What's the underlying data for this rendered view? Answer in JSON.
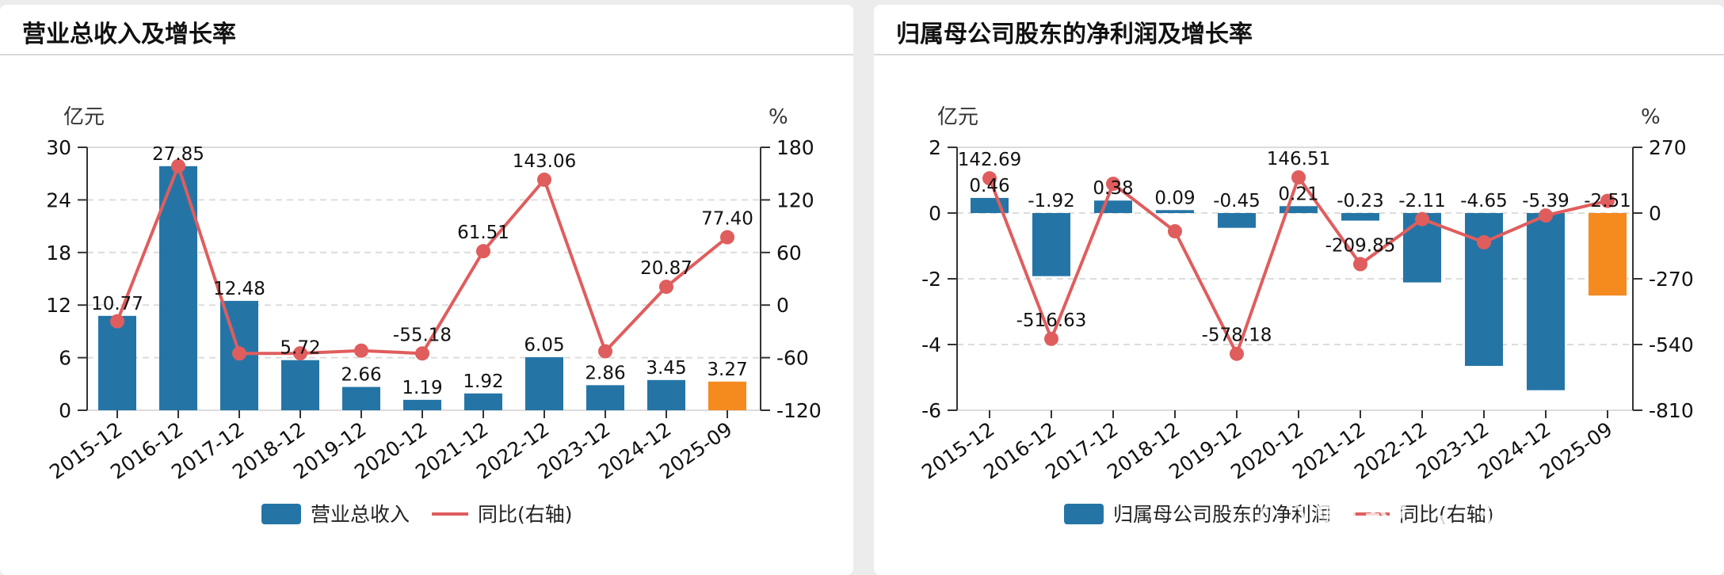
{
  "chart_data": [
    {
      "type": "bar",
      "title": "营业总收入及增长率",
      "ylabel": "亿元",
      "y2label": "%",
      "categories": [
        "2015-12",
        "2016-12",
        "2017-12",
        "2018-12",
        "2019-12",
        "2020-12",
        "2021-12",
        "2022-12",
        "2023-12",
        "2024-12",
        "2025-09"
      ],
      "ylim": [
        0,
        30
      ],
      "yticks": [
        "30",
        "24",
        "18",
        "12",
        "6",
        "0"
      ],
      "y2lim": [
        -120,
        180
      ],
      "y2ticks": [
        "180",
        "120",
        "60",
        "0",
        "-60",
        "-120"
      ],
      "series": [
        {
          "name": "营业总收入",
          "type": "bar",
          "values": [
            10.77,
            27.85,
            12.48,
            5.72,
            2.66,
            1.19,
            1.92,
            6.05,
            2.86,
            3.45,
            3.27
          ],
          "labels": [
            "10.77",
            "27.85",
            "12.48",
            "5.72",
            "2.66",
            "1.19",
            "1.92",
            "6.05",
            "2.86",
            "3.45",
            "3.27"
          ]
        },
        {
          "name": "同比(右轴)",
          "type": "line",
          "axis": "right",
          "values": [
            -18.5,
            158.6,
            -55.2,
            -55.0,
            -52.0,
            -55.18,
            61.51,
            143.06,
            -52.7,
            20.87,
            77.4
          ],
          "labels": [
            "",
            "",
            "",
            "",
            "",
            "-55.18",
            "61.51",
            "143.06",
            "",
            "20.87",
            "77.40"
          ]
        }
      ],
      "grid": true,
      "legend": "bottom-center",
      "colors": {
        "bar": "#2475a6",
        "bar_highlight": "#f58a1f",
        "line": "#e05d5d"
      }
    },
    {
      "type": "bar",
      "title": "归属母公司股东的净利润及增长率",
      "ylabel": "亿元",
      "y2label": "%",
      "categories": [
        "2015-12",
        "2016-12",
        "2017-12",
        "2018-12",
        "2019-12",
        "2020-12",
        "2021-12",
        "2022-12",
        "2023-12",
        "2024-12",
        "2025-09"
      ],
      "ylim": [
        -6,
        2
      ],
      "yticks": [
        "2",
        "0",
        "-2",
        "-4",
        "-6"
      ],
      "y2lim": [
        -810,
        270
      ],
      "y2ticks": [
        "270",
        "0",
        "-270",
        "-540",
        "-810"
      ],
      "series": [
        {
          "name": "归属母公司股东的净利润",
          "type": "bar",
          "values": [
            0.46,
            -1.92,
            0.38,
            0.09,
            -0.45,
            0.21,
            -0.23,
            -2.11,
            -4.65,
            -5.39,
            -2.51
          ],
          "labels": [
            "0.46",
            "-1.92",
            "0.38",
            "0.09",
            "-0.45",
            "0.21",
            "-0.23",
            "-2.11",
            "-4.65",
            "-5.39",
            "-2.51"
          ]
        },
        {
          "name": "同比(右轴)",
          "type": "line",
          "axis": "right",
          "values": [
            142.69,
            -516.63,
            120,
            -75,
            -578.18,
            146.51,
            -209.85,
            -25,
            -120,
            -10,
            50
          ],
          "labels": [
            "142.69",
            "-516.63",
            "",
            "",
            "-578.18",
            "146.51",
            "-209.85",
            "",
            "",
            "",
            ""
          ]
        }
      ],
      "grid": true,
      "legend": "bottom-center",
      "colors": {
        "bar": "#2475a6",
        "bar_highlight": "#f58a1f",
        "line": "#e05d5d"
      }
    }
  ],
  "watermark": {
    "text": "雪球 · 证券日报"
  }
}
